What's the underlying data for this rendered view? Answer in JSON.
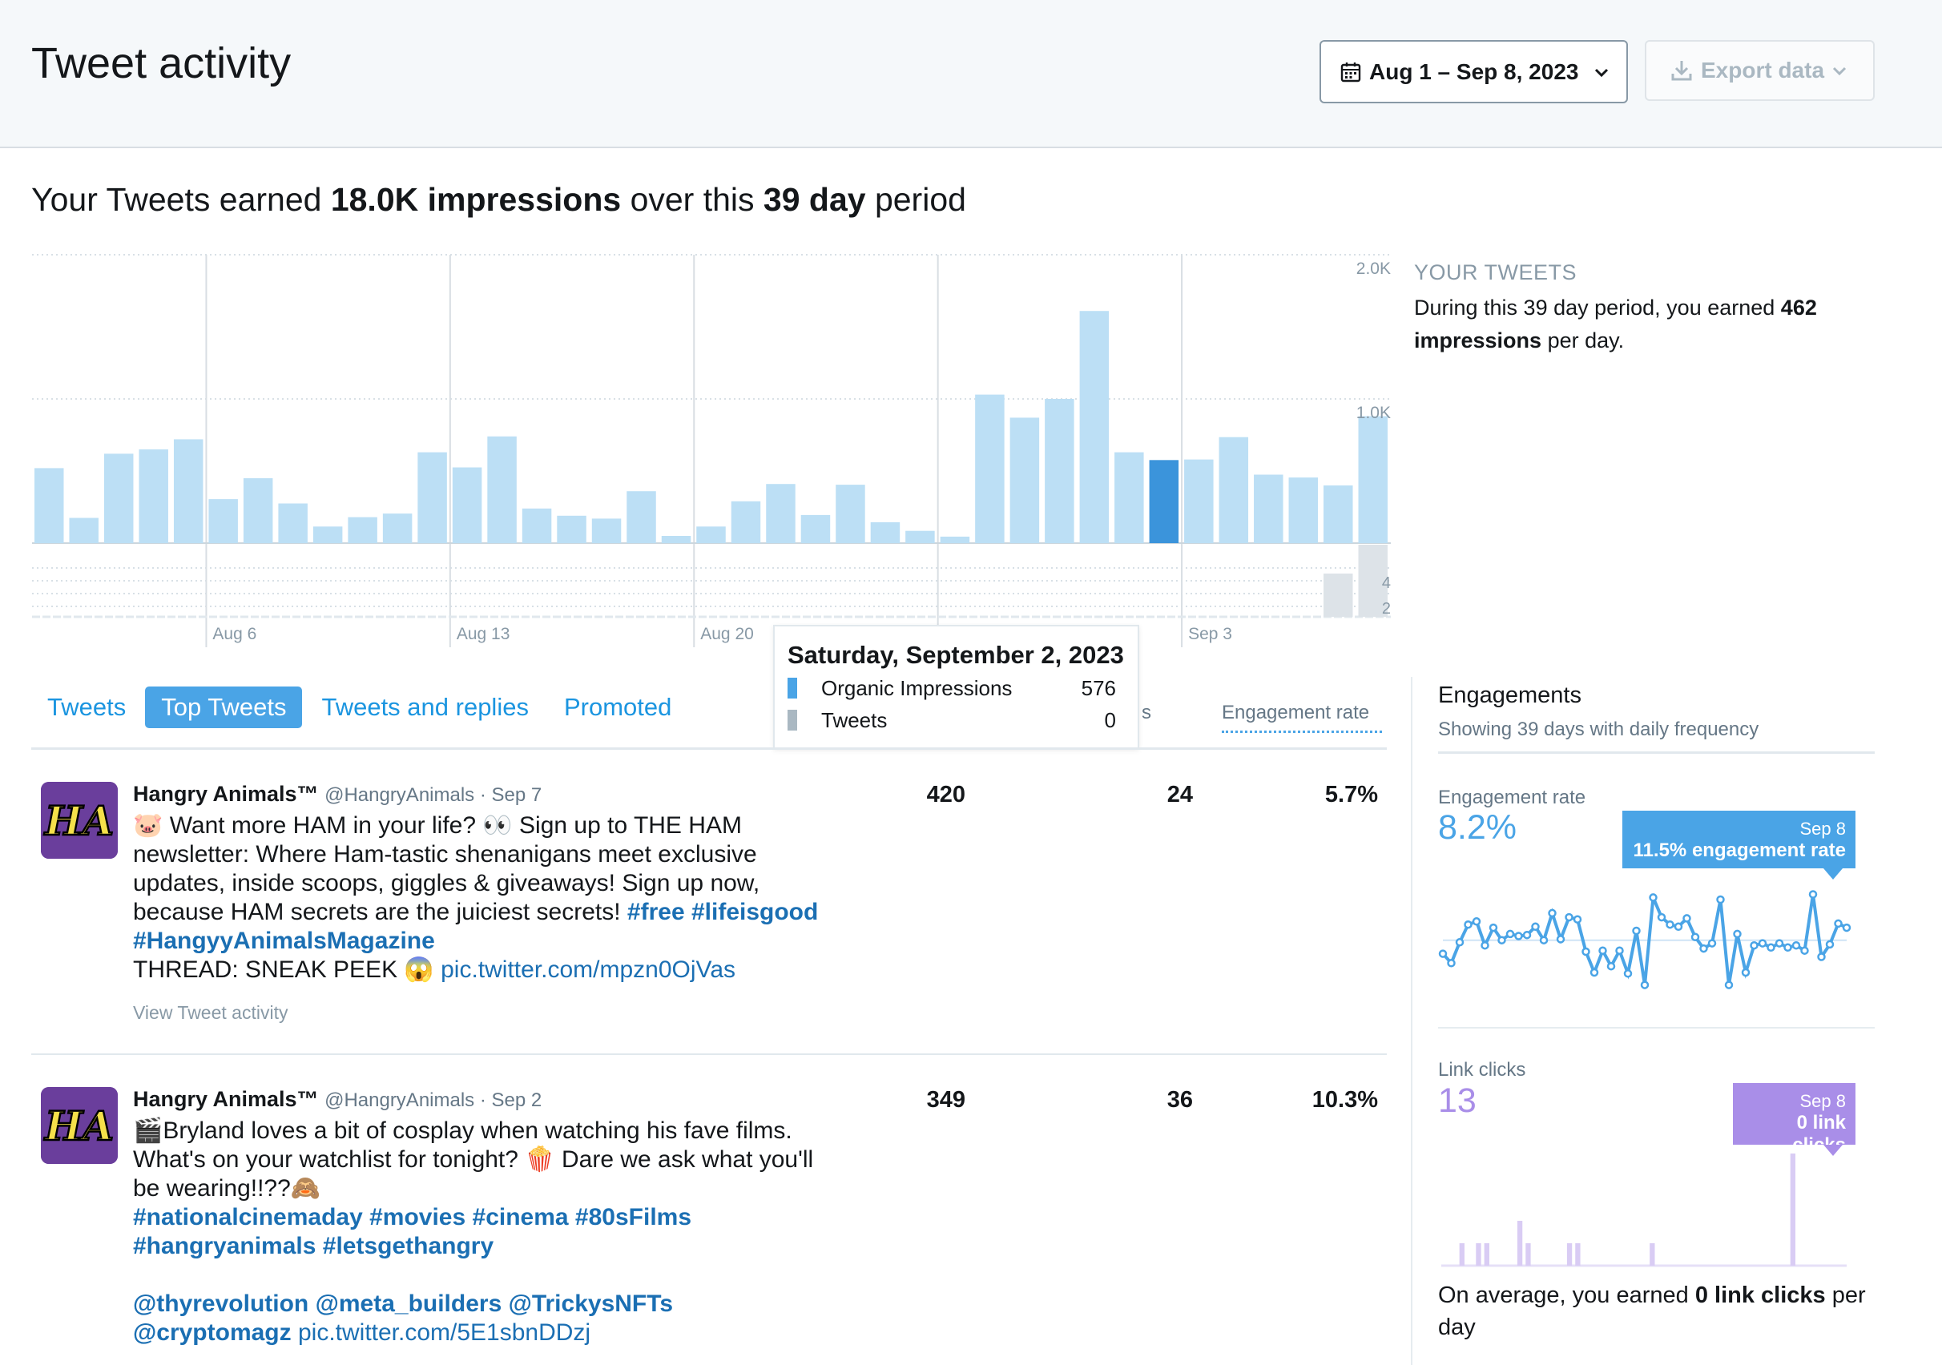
{
  "header": {
    "title": "Tweet activity",
    "date_range": "Aug 1 – Sep 8, 2023",
    "export_label": "Export data"
  },
  "summary": {
    "prefix": "Your Tweets earned ",
    "impressions": "18.0K impressions",
    "middle": " over this ",
    "period": "39 day",
    "suffix": " period"
  },
  "chart_data": {
    "type": "bar",
    "title": "",
    "xlabel": "",
    "ylabel": "",
    "x_tick_labels": [
      "Aug 6",
      "Aug 13",
      "Aug 20",
      "Sep 3"
    ],
    "y_tick_labels": [
      "2.0K",
      "1.0K"
    ],
    "ylim": [
      0,
      2000
    ],
    "categories": [
      "Aug 1",
      "Aug 2",
      "Aug 3",
      "Aug 4",
      "Aug 5",
      "Aug 6",
      "Aug 7",
      "Aug 8",
      "Aug 9",
      "Aug 10",
      "Aug 11",
      "Aug 12",
      "Aug 13",
      "Aug 14",
      "Aug 15",
      "Aug 16",
      "Aug 17",
      "Aug 18",
      "Aug 19",
      "Aug 20",
      "Aug 21",
      "Aug 22",
      "Aug 23",
      "Aug 24",
      "Aug 25",
      "Aug 26",
      "Aug 27",
      "Aug 28",
      "Aug 29",
      "Aug 30",
      "Aug 31",
      "Sep 1",
      "Sep 2",
      "Sep 3",
      "Sep 4",
      "Sep 5",
      "Sep 6",
      "Sep 7",
      "Sep 8"
    ],
    "series": [
      {
        "name": "Organic Impressions",
        "color": "#bcdff5",
        "highlight_color": "#3b94db",
        "values": [
          520,
          175,
          620,
          650,
          720,
          305,
          450,
          275,
          115,
          180,
          205,
          630,
          525,
          740,
          240,
          190,
          170,
          360,
          50,
          115,
          290,
          410,
          195,
          405,
          145,
          85,
          45,
          1030,
          870,
          1000,
          1610,
          630,
          576,
          580,
          735,
          475,
          455,
          400,
          880
        ]
      },
      {
        "name": "Tweets",
        "color": "#dde3e8",
        "values": [
          0,
          0,
          0,
          0,
          0,
          0,
          0,
          0,
          0,
          0,
          0,
          0,
          0,
          0,
          0,
          0,
          0,
          0,
          0,
          0,
          0,
          0,
          0,
          0,
          0,
          0,
          0,
          0,
          0,
          0,
          0,
          0,
          0,
          0,
          0,
          0,
          0,
          3,
          5
        ]
      }
    ],
    "secondary_y_ticks": [
      "4",
      "2"
    ],
    "highlight_index": 32,
    "grid": true
  },
  "tooltip": {
    "title": "Saturday, September 2, 2023",
    "rows": [
      {
        "label": "Organic Impressions",
        "value": "576",
        "color": "#4aa4e6"
      },
      {
        "label": "Tweets",
        "value": "0",
        "color": "#aab8c2"
      }
    ]
  },
  "tabs": [
    {
      "label": "Tweets",
      "active": false
    },
    {
      "label": "Top Tweets",
      "active": true
    },
    {
      "label": "Tweets and replies",
      "active": false
    },
    {
      "label": "Promoted",
      "active": false
    }
  ],
  "columns": {
    "cut": "s",
    "engagement_rate": "Engagement rate"
  },
  "tweets": [
    {
      "name": "Hangry Animals™",
      "meta": "@HangryAnimals · Sep 7",
      "text_1": "🐷 Want more HAM in your life? 👀 Sign up to THE HAM newsletter: Where Ham-tastic shenanigans meet exclusive updates, inside scoops, giggles & giveaways! Sign up now, because HAM secrets are the juiciest secrets! ",
      "tags_1": "#free #lifeisgood #HangyyAnimalsMagazine",
      "text_2": "THREAD: SNEAK PEEK 😱 ",
      "link": "pic.twitter.com/mpzn0OjVas",
      "view_activity": "View Tweet activity",
      "impressions": "420",
      "engagements": "24",
      "rate": "5.7%"
    },
    {
      "name": "Hangry Animals™",
      "meta": "@HangryAnimals · Sep 2",
      "text_1": "🎬Bryland loves a bit of cosplay when watching his fave films. What's on your watchlist for tonight? 🍿 Dare we ask what you'll be wearing!!??🙈",
      "tags_1": "#nationalcinemaday #movies #cinema #80sFilms #hangryanimals #letsgethangry",
      "mentions": "@thyrevolution @meta_builders @TrickysNFTs @cryptomagz",
      "link": "pic.twitter.com/5E1sbnDDzj",
      "impressions": "349",
      "engagements": "36",
      "rate": "10.3%"
    }
  ],
  "sidebar": {
    "your_tweets_label": "YOUR TWEETS",
    "your_tweets_text_1": "During this 39 day period, you earned ",
    "your_tweets_bold_1": "462",
    "your_tweets_bold_2": "impressions",
    "your_tweets_text_2": " per day.",
    "engagements_title": "Engagements",
    "engagements_sub": "Showing 39 days with daily frequency",
    "engagement_rate_label": "Engagement rate",
    "engagement_rate_value": "8.2%",
    "engagement_callout_date": "Sep 8",
    "engagement_callout_text": "11.5% engagement rate",
    "engagement_rate_series": [
      5.8,
      4.9,
      6.9,
      8.6,
      8.9,
      6.6,
      8.3,
      7.1,
      7.7,
      7.5,
      7.6,
      8.4,
      7.1,
      9.7,
      7.2,
      9.3,
      9.1,
      6.0,
      4.0,
      6.1,
      4.6,
      6.1,
      3.9,
      8.0,
      2.8,
      11.2,
      9.3,
      8.6,
      8.4,
      9.2,
      7.4,
      6.3,
      6.8,
      11.0,
      2.8,
      7.7,
      4.0,
      6.6,
      6.8,
      6.4,
      6.8,
      6.4,
      6.6,
      6.1,
      11.5,
      5.5,
      6.7,
      8.7,
      8.3
    ],
    "link_clicks_label": "Link clicks",
    "link_clicks_value": "13",
    "link_callout_date": "Sep 8",
    "link_callout_text": "0 link clicks",
    "link_clicks_series": [
      0,
      0,
      1,
      0,
      1,
      1,
      0,
      0,
      0,
      2,
      1,
      0,
      0,
      0,
      0,
      1,
      1,
      0,
      0,
      0,
      0,
      0,
      0,
      0,
      0,
      1,
      0,
      0,
      0,
      0,
      0,
      0,
      0,
      0,
      0,
      0,
      0,
      0,
      0,
      0,
      0,
      0,
      5,
      0,
      0,
      0,
      0,
      0,
      0
    ],
    "bottom_text_1": "On average, you earned ",
    "bottom_bold": "0 link clicks",
    "bottom_text_2": " per day"
  },
  "colors": {
    "accent": "#1b95e0",
    "bar": "#bcdff5",
    "bar_highlight": "#3b94db",
    "engagement_blue": "#4aa4e6",
    "link_purple": "#a98ee8"
  }
}
